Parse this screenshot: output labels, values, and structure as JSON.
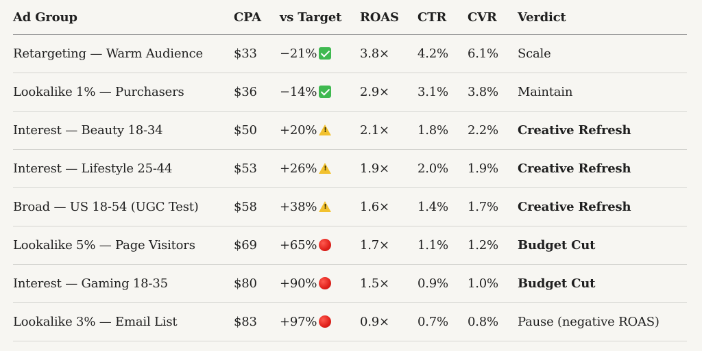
{
  "table": {
    "headers": {
      "ad_group": "Ad Group",
      "cpa": "CPA",
      "vs_target": "vs Target",
      "roas": "ROAS",
      "ctr": "CTR",
      "cvr": "CVR",
      "verdict": "Verdict"
    },
    "rows": [
      {
        "ad_group": "Retargeting — Warm Audience",
        "cpa": "$33",
        "vs_target": "−21%",
        "status": "check-icon",
        "roas": "3.8×",
        "ctr": "4.2%",
        "cvr": "6.1%",
        "verdict": "Scale",
        "verdict_bold": false
      },
      {
        "ad_group": "Lookalike 1% — Purchasers",
        "cpa": "$36",
        "vs_target": "−14%",
        "status": "check-icon",
        "roas": "2.9×",
        "ctr": "3.1%",
        "cvr": "3.8%",
        "verdict": "Maintain",
        "verdict_bold": false
      },
      {
        "ad_group": "Interest — Beauty 18-34",
        "cpa": "$50",
        "vs_target": "+20%",
        "status": "warning-icon",
        "roas": "2.1×",
        "ctr": "1.8%",
        "cvr": "2.2%",
        "verdict": "Creative Refresh",
        "verdict_bold": true
      },
      {
        "ad_group": "Interest — Lifestyle 25-44",
        "cpa": "$53",
        "vs_target": "+26%",
        "status": "warning-icon",
        "roas": "1.9×",
        "ctr": "2.0%",
        "cvr": "1.9%",
        "verdict": "Creative Refresh",
        "verdict_bold": true
      },
      {
        "ad_group": "Broad — US 18-54 (UGC Test)",
        "cpa": "$58",
        "vs_target": "+38%",
        "status": "warning-icon",
        "roas": "1.6×",
        "ctr": "1.4%",
        "cvr": "1.7%",
        "verdict": "Creative Refresh",
        "verdict_bold": true
      },
      {
        "ad_group": "Lookalike 5% — Page Visitors",
        "cpa": "$69",
        "vs_target": "+65%",
        "status": "red-circle-icon",
        "roas": "1.7×",
        "ctr": "1.1%",
        "cvr": "1.2%",
        "verdict": "Budget Cut",
        "verdict_bold": true
      },
      {
        "ad_group": "Interest — Gaming 18-35",
        "cpa": "$80",
        "vs_target": "+90%",
        "status": "red-circle-icon",
        "roas": "1.5×",
        "ctr": "0.9%",
        "cvr": "1.0%",
        "verdict": "Budget Cut",
        "verdict_bold": true
      },
      {
        "ad_group": "Lookalike 3% — Email List",
        "cpa": "$83",
        "vs_target": "+97%",
        "status": "red-circle-icon",
        "roas": "0.9×",
        "ctr": "0.7%",
        "cvr": "0.8%",
        "verdict": "Pause (negative ROAS)",
        "verdict_bold": false
      }
    ]
  },
  "colors": {
    "background": "#f7f6f2",
    "check": "#3fb950",
    "warning": "#f2c12e",
    "red": "#e0201a"
  }
}
